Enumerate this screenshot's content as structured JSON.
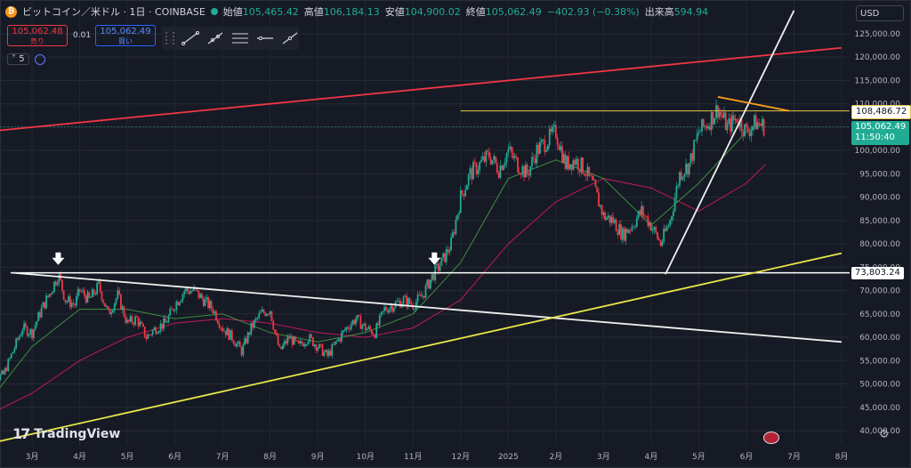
{
  "header": {
    "symbol_title": "ビットコイン／米ドル · 1日 · COINBASE",
    "open_label": "始値",
    "open": "105,465.42",
    "high_label": "高値",
    "high": "106,184.13",
    "low_label": "安値",
    "low": "104,900.02",
    "close_label": "終値",
    "close": "105,062.49",
    "change": "−402.93 (−0.38%)",
    "volume_label": "出来高",
    "volume": "594.94"
  },
  "trade": {
    "sell_price": "105,062.48",
    "sell_label": "売り",
    "spread": "0.01",
    "buy_price": "105,062.49",
    "buy_label": "買い"
  },
  "indicator_count": "5",
  "currency": "USD",
  "price_tags": {
    "level_1": "108,486.72",
    "current": "105,062.49",
    "countdown": "11:50:40",
    "level_2": "73,803.24"
  },
  "logo_text": "TradingView",
  "chart_data": {
    "type": "candlestick",
    "y_ticks": [
      "125,000.00",
      "120,000.00",
      "115,000.00",
      "110,000.00",
      "105,000.00",
      "100,000.00",
      "95,000.00",
      "90,000.00",
      "85,000.00",
      "80,000.00",
      "75,000.00",
      "70,000.00",
      "65,000.00",
      "60,000.00",
      "55,000.00",
      "50,000.00",
      "45,000.00",
      "40,000.00"
    ],
    "y_tick_values": [
      125000,
      120000,
      115000,
      110000,
      105000,
      100000,
      95000,
      90000,
      85000,
      80000,
      75000,
      70000,
      65000,
      60000,
      55000,
      50000,
      45000,
      40000
    ],
    "x_ticks": [
      "3月",
      "4月",
      "5月",
      "6月",
      "7月",
      "8月",
      "9月",
      "10月",
      "11月",
      "12月",
      "2025",
      "2月",
      "3月",
      "4月",
      "5月",
      "6月",
      "7月",
      "8月"
    ],
    "x_tick_months": [
      2,
      3,
      4,
      5,
      6,
      7,
      8,
      9,
      10,
      11,
      12,
      13,
      14,
      15,
      16,
      17,
      18,
      19
    ],
    "ylim": [
      37000,
      130000
    ],
    "colors": {
      "up": "#22ab94",
      "down": "#f23645",
      "ma_short": "#3e8e41",
      "ma_long": "#c2185b"
    },
    "close_path": [
      [
        1.0,
        47000
      ],
      [
        1.2,
        51000
      ],
      [
        1.4,
        52000
      ],
      [
        1.6,
        57000
      ],
      [
        1.8,
        62000
      ],
      [
        2.0,
        61000
      ],
      [
        2.2,
        66000
      ],
      [
        2.4,
        70000
      ],
      [
        2.55,
        73500
      ],
      [
        2.7,
        68000
      ],
      [
        2.9,
        67000
      ],
      [
        3.0,
        70000
      ],
      [
        3.2,
        68000
      ],
      [
        3.4,
        71000
      ],
      [
        3.6,
        65000
      ],
      [
        3.8,
        69000
      ],
      [
        4.0,
        63000
      ],
      [
        4.2,
        64000
      ],
      [
        4.4,
        60000
      ],
      [
        4.6,
        62000
      ],
      [
        4.8,
        63000
      ],
      [
        5.0,
        67000
      ],
      [
        5.2,
        70000
      ],
      [
        5.4,
        70000
      ],
      [
        5.6,
        68000
      ],
      [
        5.8,
        66000
      ],
      [
        6.0,
        62000
      ],
      [
        6.2,
        60000
      ],
      [
        6.4,
        57000
      ],
      [
        6.6,
        62000
      ],
      [
        6.8,
        65000
      ],
      [
        7.0,
        66000
      ],
      [
        7.1,
        61000
      ],
      [
        7.2,
        57000
      ],
      [
        7.4,
        60000
      ],
      [
        7.6,
        58000
      ],
      [
        7.8,
        60000
      ],
      [
        8.0,
        58000
      ],
      [
        8.2,
        56000
      ],
      [
        8.4,
        59000
      ],
      [
        8.6,
        62000
      ],
      [
        8.8,
        64000
      ],
      [
        9.0,
        62000
      ],
      [
        9.2,
        61000
      ],
      [
        9.4,
        66000
      ],
      [
        9.6,
        67000
      ],
      [
        9.8,
        68000
      ],
      [
        10.0,
        67000
      ],
      [
        10.2,
        69000
      ],
      [
        10.4,
        73000
      ],
      [
        10.6,
        76000
      ],
      [
        10.8,
        80000
      ],
      [
        11.0,
        90000
      ],
      [
        11.2,
        95000
      ],
      [
        11.4,
        97000
      ],
      [
        11.6,
        99000
      ],
      [
        11.8,
        96000
      ],
      [
        12.0,
        100000
      ],
      [
        12.2,
        97000
      ],
      [
        12.4,
        95000
      ],
      [
        12.6,
        100000
      ],
      [
        12.8,
        102000
      ],
      [
        13.0,
        104000
      ],
      [
        13.2,
        97000
      ],
      [
        13.4,
        98000
      ],
      [
        13.6,
        96000
      ],
      [
        13.8,
        92000
      ],
      [
        14.0,
        86000
      ],
      [
        14.2,
        85000
      ],
      [
        14.4,
        82000
      ],
      [
        14.6,
        84000
      ],
      [
        14.8,
        87000
      ],
      [
        15.0,
        84000
      ],
      [
        15.2,
        80000
      ],
      [
        15.4,
        85000
      ],
      [
        15.6,
        95000
      ],
      [
        15.8,
        97000
      ],
      [
        16.0,
        104000
      ],
      [
        16.2,
        106000
      ],
      [
        16.4,
        109000
      ],
      [
        16.6,
        105000
      ],
      [
        16.8,
        107000
      ],
      [
        17.0,
        104000
      ],
      [
        17.2,
        106000
      ],
      [
        17.4,
        105000
      ]
    ],
    "moving_average_short": [
      [
        1.0,
        45000
      ],
      [
        2.0,
        58000
      ],
      [
        3.0,
        66000
      ],
      [
        4.0,
        66000
      ],
      [
        5.0,
        64000
      ],
      [
        6.0,
        65000
      ],
      [
        7.0,
        61000
      ],
      [
        8.0,
        59000
      ],
      [
        9.0,
        61000
      ],
      [
        10.0,
        65000
      ],
      [
        11.0,
        76000
      ],
      [
        12.0,
        94000
      ],
      [
        13.0,
        98000
      ],
      [
        14.0,
        94000
      ],
      [
        15.0,
        84000
      ],
      [
        16.0,
        93000
      ],
      [
        17.0,
        104000
      ],
      [
        17.4,
        106000
      ]
    ],
    "moving_average_long": [
      [
        1.0,
        43000
      ],
      [
        2.0,
        48000
      ],
      [
        3.0,
        55000
      ],
      [
        4.0,
        60000
      ],
      [
        5.0,
        63000
      ],
      [
        6.0,
        64000
      ],
      [
        7.0,
        63000
      ],
      [
        8.0,
        61000
      ],
      [
        9.0,
        60000
      ],
      [
        10.0,
        62000
      ],
      [
        11.0,
        68000
      ],
      [
        12.0,
        80000
      ],
      [
        13.0,
        89000
      ],
      [
        14.0,
        94000
      ],
      [
        15.0,
        92000
      ],
      [
        16.0,
        87000
      ],
      [
        17.0,
        93000
      ],
      [
        17.4,
        97000
      ]
    ],
    "horizontal_levels": [
      108486.72,
      73803.24,
      105062.49
    ],
    "trendlines": [
      {
        "color": "#f23645",
        "from": [
          1.0,
          104000
        ],
        "to": [
          19.0,
          122000
        ]
      },
      {
        "color": "#f0f0f0",
        "from": [
          1.6,
          73800
        ],
        "to": [
          19.0,
          59000
        ]
      },
      {
        "color": "#e8e64a",
        "from": [
          1.0,
          37000
        ],
        "to": [
          19.0,
          78000
        ]
      },
      {
        "color": "#f0f0f0",
        "from": [
          15.3,
          73500
        ],
        "to": [
          18.0,
          130000
        ]
      },
      {
        "color": "#ff9f1a",
        "from": [
          16.4,
          111500
        ],
        "to": [
          17.9,
          108500
        ]
      }
    ],
    "markers": [
      [
        2.55,
        75500
      ],
      [
        10.45,
        75500
      ]
    ]
  }
}
